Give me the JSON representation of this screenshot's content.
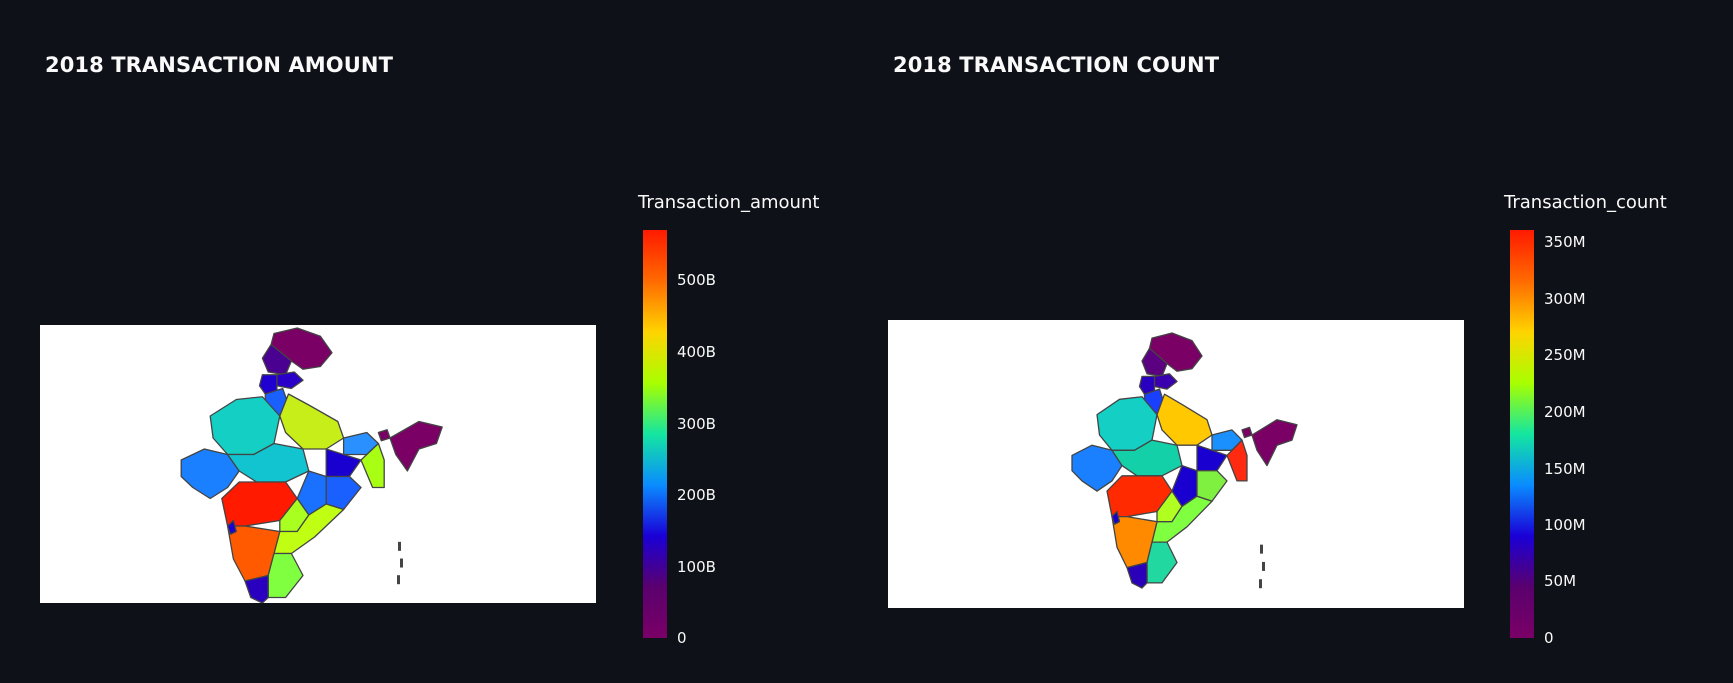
{
  "maps": [
    {
      "title": "2018 TRANSACTION AMOUNT",
      "legend_title": "Transaction_amount",
      "ticks": [
        "500B",
        "400B",
        "300B",
        "200B",
        "100B",
        "0"
      ],
      "colorscale": [
        "#ff1a00",
        "#ff6a00",
        "#ffd400",
        "#a8ff00",
        "#14e6a0",
        "#0a8cff",
        "#1a00d6",
        "#5a006e",
        "#7a0066"
      ],
      "state_colors": {
        "jk": "#7a0066",
        "ladakh": "#4a0090",
        "hp": "#2a00c8",
        "pb": "#2000d0",
        "hr": "#1a60ff",
        "rj": "#14cfc4",
        "up": "#c8ee1a",
        "gj": "#1a80ff",
        "mp": "#12c4d0",
        "bihar": "#2a90ff",
        "jh": "#1a00d0",
        "wb": "#a8ff14",
        "ne": "#7a0066",
        "sikkim": "#7a0066",
        "mh": "#ff1a00",
        "ct": "#1a70ff",
        "od": "#1a60ff",
        "tg": "#a8ff20",
        "ap": "#c0ff14",
        "ka": "#ff5a00",
        "tn": "#80ff40",
        "kl": "#2a00c0",
        "goa": "#1a00d0"
      }
    },
    {
      "title": "2018 TRANSACTION COUNT",
      "legend_title": "Transaction_count",
      "ticks": [
        "350M",
        "300M",
        "250M",
        "200M",
        "150M",
        "100M",
        "50M",
        "0"
      ],
      "colorscale": [
        "#ff1a00",
        "#ff6a00",
        "#ffd400",
        "#a8ff00",
        "#14e6a0",
        "#0a8cff",
        "#1a00d6",
        "#5a006e",
        "#7a0066"
      ],
      "state_colors": {
        "jk": "#7a0066",
        "ladakh": "#5a0080",
        "hp": "#3a00b0",
        "pb": "#2a00c0",
        "hr": "#1a40ff",
        "rj": "#14cfc4",
        "up": "#ffc800",
        "gj": "#1a80ff",
        "mp": "#14d0a8",
        "bihar": "#1a90ff",
        "jh": "#1a00d0",
        "wb": "#ff2a10",
        "ne": "#7a0066",
        "sikkim": "#7a0066",
        "mh": "#ff2a00",
        "ct": "#1a00d0",
        "od": "#80f040",
        "tg": "#b0ff20",
        "ap": "#80ff40",
        "ka": "#ff8a00",
        "tn": "#20d8a0",
        "kl": "#2a00b8",
        "goa": "#1a00d0"
      }
    }
  ]
}
